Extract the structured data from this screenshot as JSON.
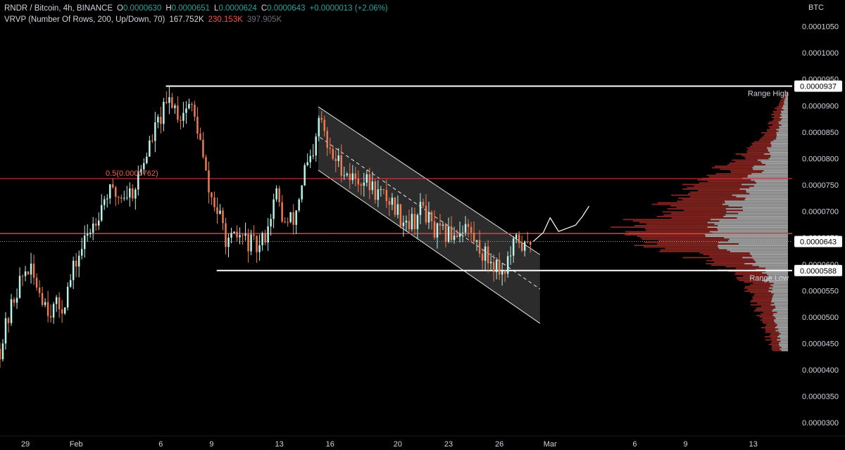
{
  "header": {
    "symbol": "RNDR / Bitcoin, 4h, BINANCE",
    "open_label": "O",
    "open": "0.0000630",
    "high_label": "H",
    "high": "0.0000651",
    "low_label": "L",
    "low": "0.0000624",
    "close_label": "C",
    "close": "0.0000643",
    "change": "+0.0000013 (+2.06%)",
    "vrvp_label": "VRVP (Number Of Rows, 200, Up/Down, 70)",
    "vrvp_up": "167.752K",
    "vrvp_down": "230.153K",
    "vrvp_total": "397.905K"
  },
  "colors": {
    "up": "#26a69a",
    "down": "#ef5350",
    "bull_candle": "#b9f3ea",
    "bear_candle": "#ef7a4f",
    "level": "#ffffff",
    "red_line": "#f23645"
  },
  "chart_data": {
    "type": "candlestick",
    "currency": "BTC",
    "y_ticks": [
      "0.0001050",
      "0.0001000",
      "0.0000950",
      "0.0000900",
      "0.0000850",
      "0.0000800",
      "0.0000750",
      "0.0000700",
      "0.0000650",
      "0.0000600",
      "0.0000550",
      "0.0000500",
      "0.0000450",
      "0.0000400",
      "0.0000350",
      "0.0000300"
    ],
    "ylim": [
      2.75e-05,
      0.00011
    ],
    "x_ticks": [
      "29",
      "Feb",
      "6",
      "9",
      "13",
      "16",
      "20",
      "23",
      "26",
      "Mar",
      "6",
      "9",
      "13"
    ],
    "x_tick_days": [
      -3,
      0,
      5,
      8,
      12,
      15,
      19,
      22,
      25,
      28,
      33,
      36,
      40
    ],
    "xlim": [
      -4.5,
      42.3
    ],
    "price_tags": [
      {
        "label": "0.0000937",
        "value": 9.37e-05
      },
      {
        "label": "0.0000643",
        "value": 6.43e-05
      },
      {
        "label": "0.0000588",
        "value": 5.88e-05
      }
    ],
    "annotations": {
      "range_high": {
        "label": "Range High",
        "value": 9.37e-05,
        "start_day": 5.3
      },
      "range_low": {
        "label": "Range Low",
        "value": 5.88e-05,
        "start_day": 8.3
      },
      "fib_05": {
        "label": "0.5(0.0000762)",
        "value": 7.62e-05
      },
      "resistance": {
        "value": 6.58e-05
      },
      "last_price_line": {
        "value": 6.43e-05
      }
    },
    "channel": {
      "upper": [
        [
          14.3,
          8.98e-05
        ],
        [
          27.4,
          6.18e-05
        ]
      ],
      "lower": [
        [
          14.3,
          7.78e-05
        ],
        [
          27.4,
          4.88e-05
        ]
      ],
      "median": [
        [
          14.4,
          8.4e-05
        ],
        [
          27.4,
          5.53e-05
        ]
      ]
    },
    "projection_path": [
      [
        27.0,
        6.43e-05
      ],
      [
        27.6,
        6.6e-05
      ],
      [
        28.0,
        6.88e-05
      ],
      [
        28.5,
        6.62e-05
      ],
      [
        29.0,
        6.68e-05
      ],
      [
        29.5,
        6.74e-05
      ],
      [
        29.9,
        6.9e-05
      ],
      [
        30.3,
        7.1e-05
      ]
    ],
    "anchor_points": [
      [
        -4.5,
        4.4e-05
      ],
      [
        -3.6,
        5.45e-05
      ],
      [
        -2.9,
        5.95e-05
      ],
      [
        -2.3,
        5.6e-05
      ],
      [
        -1.6,
        5.15e-05
      ],
      [
        -0.8,
        5.2e-05
      ],
      [
        0.0,
        6.05e-05
      ],
      [
        0.8,
        6.65e-05
      ],
      [
        1.8,
        7.35e-05
      ],
      [
        2.6,
        7.3e-05
      ],
      [
        3.4,
        7.4e-05
      ],
      [
        4.1,
        8.05e-05
      ],
      [
        4.8,
        8.65e-05
      ],
      [
        5.6,
        9.15e-05
      ],
      [
        6.1,
        8.8e-05
      ],
      [
        6.7,
        9.05e-05
      ],
      [
        7.2,
        8.55e-05
      ],
      [
        7.8,
        7.4e-05
      ],
      [
        8.4,
        6.95e-05
      ],
      [
        9.0,
        6.35e-05
      ],
      [
        9.6,
        6.55e-05
      ],
      [
        10.2,
        6.4e-05
      ],
      [
        10.8,
        6.28e-05
      ],
      [
        11.3,
        6.7e-05
      ],
      [
        11.8,
        7.35e-05
      ],
      [
        12.3,
        6.75e-05
      ],
      [
        12.9,
        6.85e-05
      ],
      [
        13.5,
        7.8e-05
      ],
      [
        14.0,
        7.95e-05
      ],
      [
        14.4,
        8.85e-05
      ],
      [
        14.9,
        8.1e-05
      ],
      [
        15.6,
        7.9e-05
      ],
      [
        16.2,
        7.65e-05
      ],
      [
        17.0,
        7.6e-05
      ],
      [
        17.8,
        7.35e-05
      ],
      [
        18.6,
        7.2e-05
      ],
      [
        19.2,
        6.9e-05
      ],
      [
        19.9,
        6.8e-05
      ],
      [
        20.5,
        7.1e-05
      ],
      [
        21.1,
        6.6e-05
      ],
      [
        21.8,
        6.55e-05
      ],
      [
        22.4,
        6.6e-05
      ],
      [
        23.0,
        6.75e-05
      ],
      [
        23.6,
        6.4e-05
      ],
      [
        24.2,
        6.15e-05
      ],
      [
        24.8,
        6e-05
      ],
      [
        25.2,
        5.85e-05
      ],
      [
        25.6,
        6.12e-05
      ],
      [
        26.1,
        6.5e-05
      ],
      [
        26.5,
        6.28e-05
      ],
      [
        26.9,
        6.43e-05
      ]
    ],
    "volume_profile_sample": [
      [
        9.25e-05,
        2,
        2
      ],
      [
        8.9e-05,
        8,
        10
      ],
      [
        8.6e-05,
        12,
        14
      ],
      [
        8.3e-05,
        20,
        24
      ],
      [
        8e-05,
        32,
        38
      ],
      [
        7.75e-05,
        45,
        52
      ],
      [
        7.5e-05,
        60,
        70
      ],
      [
        7.25e-05,
        72,
        78
      ],
      [
        7e-05,
        70,
        84
      ],
      [
        6.75e-05,
        95,
        110
      ],
      [
        6.55e-05,
        100,
        115
      ],
      [
        6.35e-05,
        80,
        95
      ],
      [
        6.15e-05,
        60,
        70
      ],
      [
        5.95e-05,
        40,
        45
      ],
      [
        5.75e-05,
        30,
        40
      ],
      [
        5.55e-05,
        22,
        30
      ],
      [
        5.35e-05,
        20,
        24
      ],
      [
        5.15e-05,
        18,
        22
      ],
      [
        4.95e-05,
        16,
        18
      ],
      [
        4.75e-05,
        14,
        16
      ],
      [
        4.55e-05,
        12,
        14
      ],
      [
        4.35e-05,
        8,
        10
      ]
    ]
  }
}
